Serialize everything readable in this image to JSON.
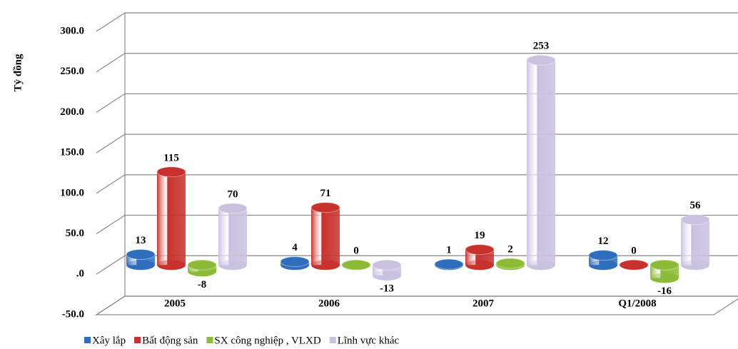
{
  "chart_data": {
    "type": "bar3d",
    "y_label": "Tỷ đồng",
    "categories": [
      "2005",
      "2006",
      "2007",
      "Q1/2008"
    ],
    "series": [
      {
        "name": "Xây lắp",
        "color": "#2f6ebd",
        "values": [
          13,
          4,
          1,
          12
        ]
      },
      {
        "name": "Bất động sản",
        "color": "#c8312c",
        "values": [
          115,
          71,
          19,
          0
        ]
      },
      {
        "name": "SX công nghiệp , VLXD",
        "color": "#8cbc36",
        "values": [
          -8,
          0,
          2,
          -16
        ]
      },
      {
        "name": "Lĩnh vực khác",
        "color": "#c9c1e0",
        "values": [
          70,
          -13,
          253,
          56
        ]
      }
    ],
    "ylim": [
      -50,
      300
    ],
    "yticks": [
      {
        "value": -50,
        "label": "-50.0"
      },
      {
        "value": 0,
        "label": ".0"
      },
      {
        "value": 50,
        "label": "50.0"
      },
      {
        "value": 100,
        "label": "100.0"
      },
      {
        "value": 150,
        "label": "150.0"
      },
      {
        "value": 200,
        "label": "200.0"
      },
      {
        "value": 250,
        "label": "250.0"
      },
      {
        "value": 300,
        "label": "300.0"
      }
    ],
    "grid": true,
    "legend": "bottom"
  }
}
